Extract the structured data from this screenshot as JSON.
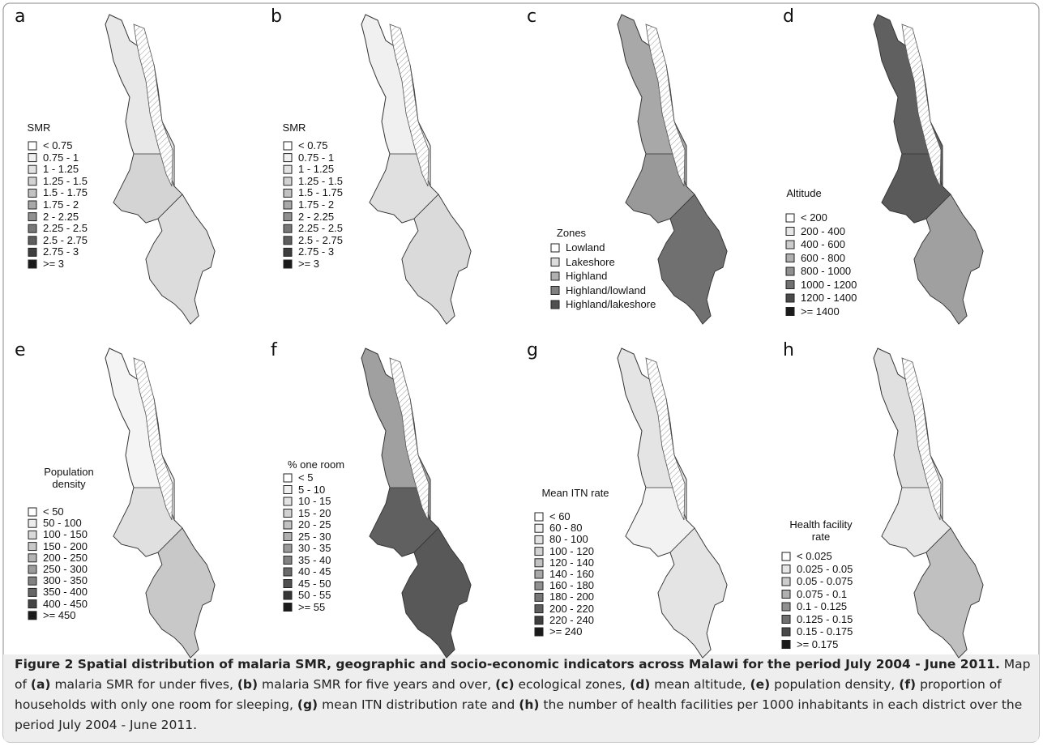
{
  "panels": [
    {
      "letter": "a",
      "legend_title": "SMR",
      "entries": [
        "< 0.75",
        "0.75 - 1",
        "1 - 1.25",
        "1.25 - 1.5",
        "1.5 - 1.75",
        "1.75 - 2",
        "2 - 2.25",
        "2.25 - 2.5",
        "2.5 - 2.75",
        "2.75 - 3",
        ">= 3"
      ],
      "colors": [
        "#ffffff",
        "#f0f0f0",
        "#e2e2e2",
        "#d2d2d2",
        "#c2c2c2",
        "#a8a8a8",
        "#909090",
        "#787878",
        "#5e5e5e",
        "#3e3e3e",
        "#1a1a1a"
      ]
    },
    {
      "letter": "b",
      "legend_title": "SMR",
      "entries": [
        "< 0.75",
        "0.75 - 1",
        "1 - 1.25",
        "1.25 - 1.5",
        "1.5 - 1.75",
        "1.75 - 2",
        "2 - 2.25",
        "2.25 - 2.5",
        "2.5 - 2.75",
        "2.75 - 3",
        ">= 3"
      ],
      "colors": [
        "#ffffff",
        "#f0f0f0",
        "#e2e2e2",
        "#d2d2d2",
        "#c2c2c2",
        "#a8a8a8",
        "#909090",
        "#787878",
        "#5e5e5e",
        "#3e3e3e",
        "#1a1a1a"
      ]
    },
    {
      "letter": "c",
      "legend_title": "Zones",
      "entries": [
        "Lowland",
        "Lakeshore",
        "Highland",
        "Highland/lowland",
        "Highland/lakeshore"
      ],
      "colors": [
        "#ffffff",
        "#dcdcdc",
        "#b0b0b0",
        "#808080",
        "#505050"
      ]
    },
    {
      "letter": "d",
      "legend_title": "Altitude",
      "entries": [
        "< 200",
        "200 - 400",
        "400 - 600",
        "600 - 800",
        "800 - 1000",
        "1000 - 1200",
        "1200 - 1400",
        ">= 1400"
      ],
      "colors": [
        "#ffffff",
        "#e6e6e6",
        "#cccccc",
        "#b0b0b0",
        "#909090",
        "#707070",
        "#4a4a4a",
        "#1a1a1a"
      ]
    },
    {
      "letter": "e",
      "legend_title": "Population density",
      "entries": [
        "< 50",
        "50 - 100",
        "100 - 150",
        "150 - 200",
        "200 - 250",
        "250 - 300",
        "300 - 350",
        "350 - 400",
        "400 - 450",
        ">= 450"
      ],
      "colors": [
        "#ffffff",
        "#ececec",
        "#dadada",
        "#c8c8c8",
        "#b4b4b4",
        "#9c9c9c",
        "#828282",
        "#666666",
        "#444444",
        "#1a1a1a"
      ]
    },
    {
      "letter": "f",
      "legend_title": "% one room",
      "entries": [
        "< 5",
        "5 - 10",
        "10 - 15",
        "15 - 20",
        "20 - 25",
        "25 - 30",
        "30 - 35",
        "35 - 40",
        "40 - 45",
        "45 - 50",
        "50 - 55",
        ">= 55"
      ],
      "colors": [
        "#ffffff",
        "#f0f0f0",
        "#e2e2e2",
        "#d2d2d2",
        "#c2c2c2",
        "#b0b0b0",
        "#9a9a9a",
        "#828282",
        "#6a6a6a",
        "#505050",
        "#363636",
        "#1a1a1a"
      ]
    },
    {
      "letter": "g",
      "legend_title": "Mean ITN rate",
      "entries": [
        "< 60",
        "60 - 80",
        "80 - 100",
        "100 - 120",
        "120 - 140",
        "140 - 160",
        "160 - 180",
        "180 - 200",
        "200 - 220",
        "220 - 240",
        ">= 240"
      ],
      "colors": [
        "#ffffff",
        "#f0f0f0",
        "#e2e2e2",
        "#d2d2d2",
        "#c2c2c2",
        "#a8a8a8",
        "#909090",
        "#787878",
        "#5e5e5e",
        "#3e3e3e",
        "#1a1a1a"
      ]
    },
    {
      "letter": "h",
      "legend_title": "Health facility rate",
      "entries": [
        "< 0.025",
        "0.025 - 0.05",
        "0.05 - 0.075",
        "0.075 - 0.1",
        "0.1 - 0.125",
        "0.125 - 0.15",
        "0.15 - 0.175",
        ">= 0.175"
      ],
      "colors": [
        "#ffffff",
        "#e6e6e6",
        "#cccccc",
        "#b0b0b0",
        "#909090",
        "#707070",
        "#4a4a4a",
        "#1a1a1a"
      ]
    }
  ],
  "caption": {
    "title": "Figure 2 Spatial distribution of malaria SMR, geographic and socio-economic indicators across Malawi for the period July 2004 - June 2011.",
    "parts": [
      {
        "text": " Map of ",
        "bold": false
      },
      {
        "text": "(a)",
        "bold": true
      },
      {
        "text": " malaria SMR for under fives, ",
        "bold": false
      },
      {
        "text": "(b)",
        "bold": true
      },
      {
        "text": " malaria SMR for five years and over, ",
        "bold": false
      },
      {
        "text": "(c)",
        "bold": true
      },
      {
        "text": " ecological zones, ",
        "bold": false
      },
      {
        "text": "(d)",
        "bold": true
      },
      {
        "text": " mean altitude, ",
        "bold": false
      },
      {
        "text": "(e)",
        "bold": true
      },
      {
        "text": " population density, ",
        "bold": false
      },
      {
        "text": "(f)",
        "bold": true
      },
      {
        "text": " proportion of households with only one room for sleeping, ",
        "bold": false
      },
      {
        "text": "(g)",
        "bold": true
      },
      {
        "text": " mean ITN distribution rate and ",
        "bold": false
      },
      {
        "text": "(h)",
        "bold": true
      },
      {
        "text": " the number of health facilities per 1000 inhabitants in each district over the period July 2004 - June 2011.",
        "bold": false
      }
    ]
  }
}
